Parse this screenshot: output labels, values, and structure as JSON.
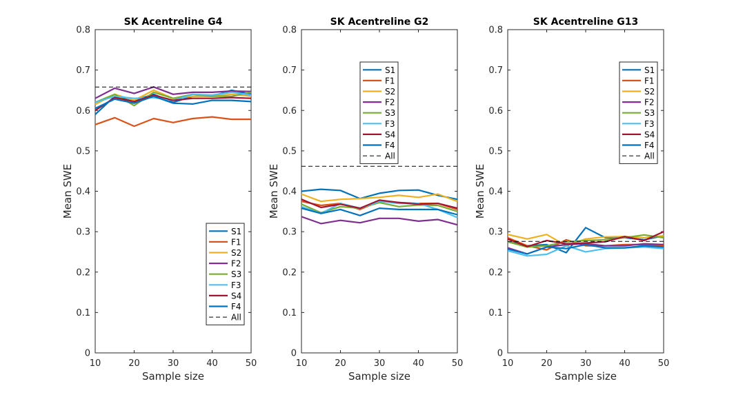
{
  "figure": {
    "colors": {
      "S1": "#0072BD",
      "F1": "#D95319",
      "S2": "#EDB120",
      "F2": "#7E2F8E",
      "S3": "#77AC30",
      "F3": "#4DBEEE",
      "S4": "#A2142F",
      "F4": "#0072BD",
      "All": "#000000"
    }
  },
  "chart_data": [
    {
      "type": "line",
      "title": "SK Acentreline G4",
      "xlabel": "Sample size",
      "ylabel": "Mean SWE",
      "xlim": [
        10,
        50
      ],
      "ylim": [
        0,
        0.8
      ],
      "xticks": [
        "10",
        "20",
        "30",
        "40",
        "50"
      ],
      "yticks": [
        "0",
        "0.1",
        "0.2",
        "0.3",
        "0.4",
        "0.5",
        "0.6",
        "0.7",
        "0.8"
      ],
      "legend_position": "bottom-right",
      "x": [
        10,
        15,
        20,
        25,
        30,
        35,
        40,
        45,
        50
      ],
      "series": [
        {
          "name": "S1",
          "values": [
            0.59,
            0.635,
            0.625,
            0.64,
            0.62,
            0.635,
            0.635,
            0.65,
            0.64
          ]
        },
        {
          "name": "F1",
          "values": [
            0.565,
            0.582,
            0.561,
            0.58,
            0.57,
            0.58,
            0.584,
            0.578,
            0.578
          ]
        },
        {
          "name": "S2",
          "values": [
            0.615,
            0.64,
            0.625,
            0.65,
            0.63,
            0.635,
            0.635,
            0.64,
            0.635
          ]
        },
        {
          "name": "F2",
          "values": [
            0.63,
            0.655,
            0.642,
            0.658,
            0.64,
            0.645,
            0.645,
            0.648,
            0.647
          ]
        },
        {
          "name": "S3",
          "values": [
            0.62,
            0.64,
            0.612,
            0.645,
            0.63,
            0.64,
            0.635,
            0.635,
            0.645
          ]
        },
        {
          "name": "F3",
          "values": [
            0.62,
            0.635,
            0.63,
            0.632,
            0.625,
            0.64,
            0.638,
            0.645,
            0.638
          ]
        },
        {
          "name": "S4",
          "values": [
            0.6,
            0.632,
            0.622,
            0.638,
            0.625,
            0.63,
            0.63,
            0.632,
            0.63
          ]
        },
        {
          "name": "F4",
          "values": [
            0.605,
            0.628,
            0.618,
            0.635,
            0.618,
            0.616,
            0.625,
            0.625,
            0.622
          ]
        },
        {
          "name": "All",
          "values": [
            0.658,
            0.658,
            0.658,
            0.658,
            0.658,
            0.658,
            0.658,
            0.658,
            0.658
          ],
          "dashed": true
        }
      ]
    },
    {
      "type": "line",
      "title": "SK Acentreline G2",
      "xlabel": "Sample size",
      "ylabel": "Mean SWE",
      "xlim": [
        10,
        50
      ],
      "ylim": [
        0,
        0.8
      ],
      "xticks": [
        "10",
        "20",
        "30",
        "40",
        "50"
      ],
      "yticks": [
        "0",
        "0.1",
        "0.2",
        "0.3",
        "0.4",
        "0.5",
        "0.6",
        "0.7",
        "0.8"
      ],
      "legend_position": "top-center",
      "x": [
        10,
        15,
        20,
        25,
        30,
        35,
        40,
        45,
        50
      ],
      "series": [
        {
          "name": "S1",
          "values": [
            0.4,
            0.405,
            0.402,
            0.382,
            0.395,
            0.402,
            0.403,
            0.39,
            0.38
          ]
        },
        {
          "name": "F1",
          "values": [
            0.375,
            0.365,
            0.37,
            0.355,
            0.375,
            0.372,
            0.37,
            0.37,
            0.355
          ]
        },
        {
          "name": "S2",
          "values": [
            0.393,
            0.375,
            0.38,
            0.382,
            0.385,
            0.39,
            0.385,
            0.393,
            0.375
          ]
        },
        {
          "name": "F2",
          "values": [
            0.337,
            0.32,
            0.328,
            0.322,
            0.333,
            0.333,
            0.326,
            0.33,
            0.317
          ]
        },
        {
          "name": "S3",
          "values": [
            0.368,
            0.347,
            0.362,
            0.358,
            0.372,
            0.362,
            0.366,
            0.365,
            0.35
          ]
        },
        {
          "name": "F3",
          "values": [
            0.362,
            0.345,
            0.37,
            0.358,
            0.375,
            0.37,
            0.37,
            0.355,
            0.335
          ]
        },
        {
          "name": "S4",
          "values": [
            0.38,
            0.36,
            0.368,
            0.358,
            0.378,
            0.372,
            0.368,
            0.37,
            0.358
          ]
        },
        {
          "name": "F4",
          "values": [
            0.358,
            0.345,
            0.355,
            0.34,
            0.358,
            0.355,
            0.355,
            0.355,
            0.342
          ]
        },
        {
          "name": "All",
          "values": [
            0.462,
            0.462,
            0.462,
            0.462,
            0.462,
            0.462,
            0.462,
            0.462,
            0.462
          ],
          "dashed": true
        }
      ]
    },
    {
      "type": "line",
      "title": "SK Acentreline G13",
      "xlabel": "Sample size",
      "ylabel": "Mean SWE",
      "xlim": [
        10,
        50
      ],
      "ylim": [
        0,
        0.8
      ],
      "xticks": [
        "10",
        "20",
        "30",
        "40",
        "50"
      ],
      "yticks": [
        "0",
        "0.1",
        "0.2",
        "0.3",
        "0.4",
        "0.5",
        "0.6",
        "0.7",
        "0.8"
      ],
      "legend_position": "top-right",
      "x": [
        10,
        15,
        20,
        25,
        30,
        35,
        40,
        45,
        50
      ],
      "series": [
        {
          "name": "S1",
          "values": [
            0.275,
            0.265,
            0.268,
            0.248,
            0.31,
            0.285,
            0.285,
            0.28,
            0.29
          ]
        },
        {
          "name": "F1",
          "values": [
            0.285,
            0.265,
            0.255,
            0.28,
            0.265,
            0.265,
            0.268,
            0.268,
            0.265
          ]
        },
        {
          "name": "S2",
          "values": [
            0.293,
            0.282,
            0.293,
            0.265,
            0.282,
            0.287,
            0.288,
            0.285,
            0.29
          ]
        },
        {
          "name": "F2",
          "values": [
            0.26,
            0.245,
            0.262,
            0.268,
            0.27,
            0.265,
            0.265,
            0.27,
            0.268
          ]
        },
        {
          "name": "S3",
          "values": [
            0.275,
            0.262,
            0.265,
            0.275,
            0.278,
            0.28,
            0.285,
            0.292,
            0.285
          ]
        },
        {
          "name": "F3",
          "values": [
            0.253,
            0.24,
            0.244,
            0.265,
            0.25,
            0.258,
            0.26,
            0.262,
            0.258
          ]
        },
        {
          "name": "S4",
          "values": [
            0.282,
            0.263,
            0.278,
            0.27,
            0.272,
            0.275,
            0.288,
            0.278,
            0.3
          ]
        },
        {
          "name": "F4",
          "values": [
            0.257,
            0.245,
            0.262,
            0.258,
            0.268,
            0.26,
            0.26,
            0.265,
            0.262
          ]
        },
        {
          "name": "All",
          "values": [
            0.276,
            0.276,
            0.276,
            0.276,
            0.276,
            0.276,
            0.276,
            0.276,
            0.276
          ],
          "dashed": true
        }
      ]
    }
  ]
}
